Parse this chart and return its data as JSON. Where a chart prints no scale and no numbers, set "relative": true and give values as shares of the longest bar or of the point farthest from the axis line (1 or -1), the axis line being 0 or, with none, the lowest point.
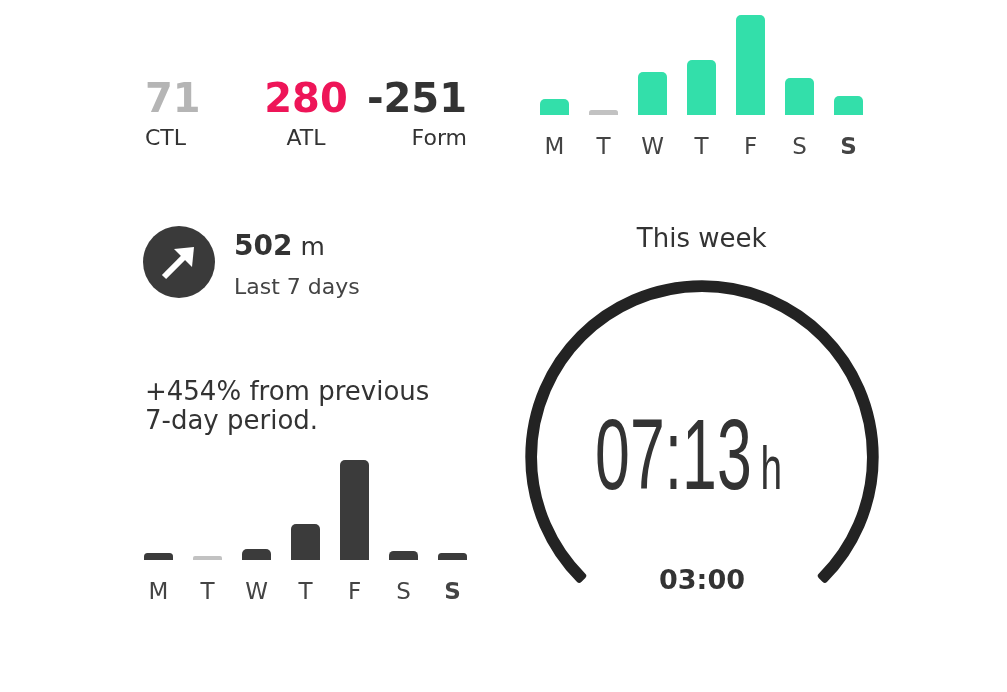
{
  "chart_data": [
    {
      "type": "other",
      "categories": [
        "CTL",
        "ATL",
        "Form"
      ],
      "values": [
        71,
        280,
        -251
      ],
      "colors": [
        "#b5b5b5",
        "#ee1558",
        "#333333"
      ],
      "data_labels": true
    },
    {
      "type": "bar",
      "relative": true,
      "categories": [
        "M",
        "T",
        "W",
        "T",
        "F",
        "S",
        "S"
      ],
      "values": [
        0.16,
        0.05,
        0.43,
        0.55,
        1,
        0.37,
        0.19
      ],
      "colors": [
        "#33dfaa",
        "#c2c2c2",
        "#33dfaa",
        "#33dfaa",
        "#33dfaa",
        "#33dfaa",
        "#33dfaa"
      ]
    },
    {
      "type": "other",
      "annotations": [
        "502 m",
        "Last 7 days"
      ]
    },
    {
      "type": "bar",
      "relative": true,
      "title": "+454% from previous 7-day period.",
      "categories": [
        "M",
        "T",
        "W",
        "T",
        "F",
        "S",
        "S"
      ],
      "values": [
        0.07,
        0.04,
        0.11,
        0.36,
        1,
        0.09,
        0.07
      ],
      "colors": [
        "#3b3b3b",
        "#c2c2c2",
        "#3b3b3b",
        "#3b3b3b",
        "#3b3b3b",
        "#3b3b3b",
        "#3b3b3b"
      ]
    },
    {
      "type": "pie",
      "title": "This week",
      "categories": [
        null
      ],
      "values": [
        100
      ],
      "colors": [
        "#232323"
      ],
      "annotations": [
        "07:13h",
        "03:00"
      ]
    }
  ]
}
